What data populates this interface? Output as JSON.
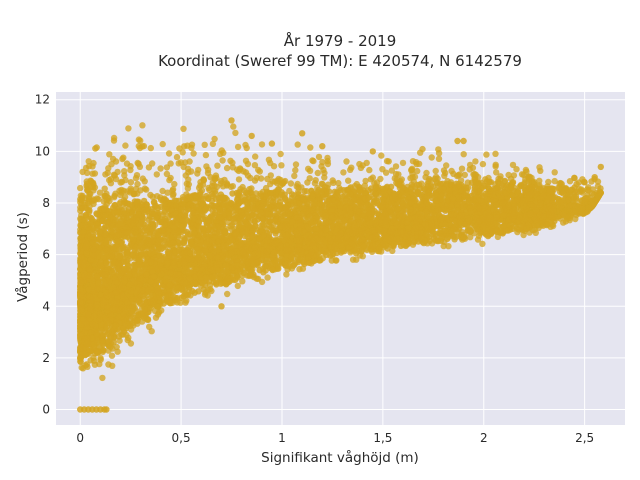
{
  "chart_data": {
    "type": "scatter",
    "title": "År 1979 - 2019",
    "subtitle": "Koordinat (Sweref 99 TM): E 420574, N 6142579",
    "xlabel": "Signifikant våghöjd (m)",
    "ylabel": "Vågperiod (s)",
    "xlim": [
      -0.12,
      2.7
    ],
    "ylim": [
      -0.6,
      12.3
    ],
    "x_ticks": [
      0,
      0.5,
      1,
      1.5,
      2,
      2.5
    ],
    "x_tick_labels": [
      "0",
      "0,5",
      "1",
      "1,5",
      "2",
      "2,5"
    ],
    "y_ticks": [
      0,
      2,
      4,
      6,
      8,
      10,
      12
    ],
    "y_tick_labels": [
      "0",
      "2",
      "4",
      "6",
      "8",
      "10",
      "12"
    ],
    "grid": true,
    "colors": {
      "marker": "#d4a520",
      "plot_background": "#e5e5f0",
      "grid": "#ffffff"
    },
    "envelope": {
      "x": [
        0.0,
        0.02,
        0.05,
        0.1,
        0.15,
        0.2,
        0.25,
        0.3,
        0.4,
        0.5,
        0.7,
        1.0,
        1.3,
        1.6,
        2.0,
        2.3,
        2.5,
        2.58
      ],
      "y_min": [
        1.0,
        1.1,
        1.1,
        1.2,
        1.3,
        2.0,
        2.4,
        2.7,
        3.2,
        3.7,
        4.3,
        4.9,
        5.5,
        5.9,
        6.3,
        6.8,
        7.4,
        8.4
      ],
      "y_max": [
        9.5,
        10.2,
        11.0,
        11.7,
        11.9,
        11.6,
        11.7,
        11.6,
        11.4,
        11.3,
        11.2,
        10.6,
        10.4,
        10.3,
        10.4,
        9.6,
        9.2,
        9.4
      ]
    },
    "zero_points": {
      "x": [
        0.0,
        0.02,
        0.04,
        0.06,
        0.08,
        0.1,
        0.12,
        0.13
      ],
      "y": [
        0,
        0,
        0,
        0,
        0,
        0,
        0,
        0
      ]
    },
    "notable_points": {
      "x": [
        2.55,
        2.58,
        2.5,
        2.45,
        1.9,
        1.87,
        0.75,
        0.85,
        0.95,
        1.2,
        1.45,
        1.1,
        0.7
      ],
      "y": [
        9.0,
        9.4,
        8.8,
        8.6,
        10.4,
        10.4,
        11.2,
        10.6,
        10.3,
        10.2,
        10.0,
        10.7,
        4.0
      ],
      "notes": "sparse outliers around the dense cloud"
    }
  }
}
